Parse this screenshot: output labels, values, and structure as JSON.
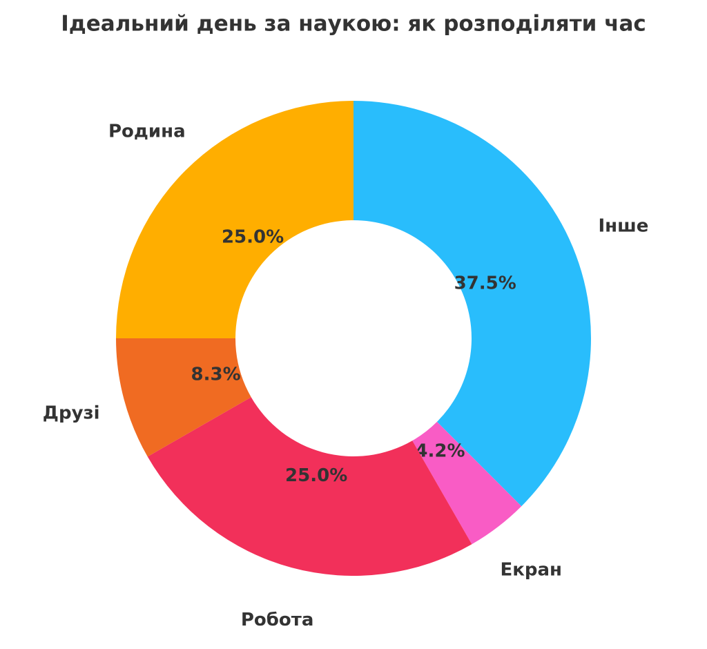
{
  "chart_data": {
    "type": "donut",
    "title": "Ідеальний день за наукою: як розподіляти час",
    "categories": [
      "Інше",
      "Екран",
      "Робота",
      "Друзі",
      "Родина"
    ],
    "values": [
      37.5,
      4.2,
      25.0,
      8.3,
      25.0
    ],
    "value_labels": [
      "37.5%",
      "4.2%",
      "25.0%",
      "8.3%",
      "25.0%"
    ],
    "colors": [
      "#29bdfc",
      "#f95cc5",
      "#f2305a",
      "#f06b22",
      "#ffae00"
    ]
  }
}
